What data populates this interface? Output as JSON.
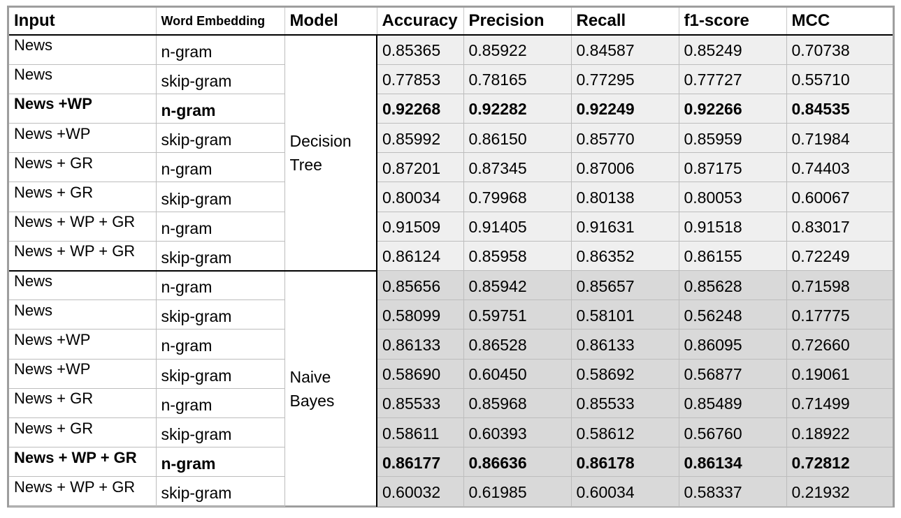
{
  "headers": {
    "input": "Input",
    "embedding": "Word Embedding",
    "model": "Model",
    "accuracy": "Accuracy",
    "precision": "Precision",
    "recall": "Recall",
    "f1": "f1-score",
    "mcc": "MCC"
  },
  "groups": [
    {
      "model_line1": "Decision",
      "model_line2": "Tree",
      "rows": [
        {
          "input": "News",
          "embedding": "n-gram",
          "accuracy": "0.85365",
          "precision": "0.85922",
          "recall": "0.84587",
          "f1": "0.85249",
          "mcc": "0.70738",
          "bold": false
        },
        {
          "input": "News",
          "embedding": "skip-gram",
          "accuracy": "0.77853",
          "precision": "0.78165",
          "recall": "0.77295",
          "f1": "0.77727",
          "mcc": "0.55710",
          "bold": false
        },
        {
          "input": "News +WP",
          "embedding": "n-gram",
          "accuracy": "0.92268",
          "precision": "0.92282",
          "recall": "0.92249",
          "f1": "0.92266",
          "mcc": "0.84535",
          "bold": true
        },
        {
          "input": "News +WP",
          "embedding": "skip-gram",
          "accuracy": "0.85992",
          "precision": "0.86150",
          "recall": "0.85770",
          "f1": "0.85959",
          "mcc": "0.71984",
          "bold": false
        },
        {
          "input": "News + GR",
          "embedding": "n-gram",
          "accuracy": "0.87201",
          "precision": "0.87345",
          "recall": "0.87006",
          "f1": "0.87175",
          "mcc": "0.74403",
          "bold": false
        },
        {
          "input": "News + GR",
          "embedding": "skip-gram",
          "accuracy": "0.80034",
          "precision": "0.79968",
          "recall": "0.80138",
          "f1": "0.80053",
          "mcc": "0.60067",
          "bold": false
        },
        {
          "input": "News + WP + GR",
          "embedding": "n-gram",
          "accuracy": "0.91509",
          "precision": "0.91405",
          "recall": "0.91631",
          "f1": "0.91518",
          "mcc": "0.83017",
          "bold": false
        },
        {
          "input": "News + WP + GR",
          "embedding": "skip-gram",
          "accuracy": "0.86124",
          "precision": "0.85958",
          "recall": "0.86352",
          "f1": "0.86155",
          "mcc": "0.72249",
          "bold": false
        }
      ]
    },
    {
      "model_line1": "Naive",
      "model_line2": "Bayes",
      "rows": [
        {
          "input": "News",
          "embedding": "n-gram",
          "accuracy": "0.85656",
          "precision": "0.85942",
          "recall": "0.85657",
          "f1": "0.85628",
          "mcc": "0.71598",
          "bold": false
        },
        {
          "input": "News",
          "embedding": "skip-gram",
          "accuracy": "0.58099",
          "precision": "0.59751",
          "recall": "0.58101",
          "f1": "0.56248",
          "mcc": "0.17775",
          "bold": false
        },
        {
          "input": "News +WP",
          "embedding": "n-gram",
          "accuracy": "0.86133",
          "precision": "0.86528",
          "recall": "0.86133",
          "f1": "0.86095",
          "mcc": "0.72660",
          "bold": false
        },
        {
          "input": "News +WP",
          "embedding": "skip-gram",
          "accuracy": "0.58690",
          "precision": "0.60450",
          "recall": "0.58692",
          "f1": "0.56877",
          "mcc": "0.19061",
          "bold": false
        },
        {
          "input": "News + GR",
          "embedding": "n-gram",
          "accuracy": "0.85533",
          "precision": "0.85968",
          "recall": "0.85533",
          "f1": "0.85489",
          "mcc": "0.71499",
          "bold": false
        },
        {
          "input": "News + GR",
          "embedding": "skip-gram",
          "accuracy": "0.58611",
          "precision": "0.60393",
          "recall": "0.58612",
          "f1": "0.56760",
          "mcc": "0.18922",
          "bold": false
        },
        {
          "input": "News + WP + GR",
          "embedding": "n-gram",
          "accuracy": "0.86177",
          "precision": "0.86636",
          "recall": "0.86178",
          "f1": "0.86134",
          "mcc": "0.72812",
          "bold": true
        },
        {
          "input": "News + WP + GR",
          "embedding": "skip-gram",
          "accuracy": "0.60032",
          "precision": "0.61985",
          "recall": "0.60034",
          "f1": "0.58337",
          "mcc": "0.21932",
          "bold": false
        }
      ]
    }
  ],
  "colors": {
    "group1_fill": "#efefef",
    "group2_fill": "#d9d9d9",
    "frame_border": "#9e9e9e"
  }
}
